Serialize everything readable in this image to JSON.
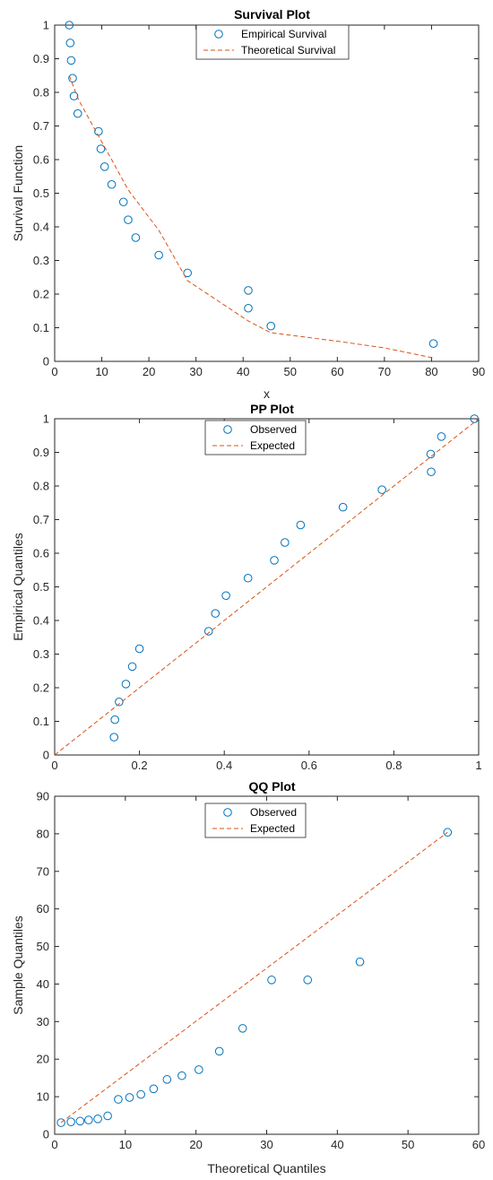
{
  "colors": {
    "marker": "#0072BD",
    "line": "#D95319",
    "axis": "#262626",
    "background": "#ffffff"
  },
  "chart_data": [
    {
      "type": "scatter",
      "title": "Survival Plot",
      "xlabel": "x",
      "ylabel": "Survival Function",
      "xlim": [
        0,
        90
      ],
      "ylim": [
        0,
        1
      ],
      "xticks": [
        0,
        10,
        20,
        30,
        40,
        50,
        60,
        70,
        80,
        90
      ],
      "yticks": [
        0,
        0.1,
        0.2,
        0.3,
        0.4,
        0.5,
        0.6,
        0.7,
        0.8,
        0.9,
        1
      ],
      "legend_position": "top-center",
      "grid": false,
      "series": [
        {
          "name": "Empirical Survival",
          "kind": "markers",
          "x": [
            3.1,
            3.3,
            3.5,
            3.8,
            4.1,
            4.9,
            9.3,
            9.8,
            10.6,
            12.1,
            14.6,
            15.6,
            17.2,
            22.1,
            28.2,
            41.1,
            41.1,
            45.9,
            80.4
          ],
          "y": [
            1.0,
            0.947,
            0.895,
            0.842,
            0.789,
            0.737,
            0.684,
            0.632,
            0.579,
            0.526,
            0.474,
            0.421,
            0.368,
            0.316,
            0.263,
            0.211,
            0.158,
            0.105,
            0.053
          ]
        },
        {
          "name": "Theoretical Survival",
          "kind": "dashed-line",
          "x": [
            3.1,
            5,
            9.3,
            12.1,
            15.6,
            22.1,
            28.2,
            41.1,
            45.9,
            60,
            70,
            80.4
          ],
          "y": [
            0.85,
            0.78,
            0.67,
            0.6,
            0.51,
            0.39,
            0.24,
            0.12,
            0.085,
            0.06,
            0.04,
            0.01
          ]
        }
      ]
    },
    {
      "type": "scatter",
      "title": "PP Plot",
      "xlabel": "",
      "ylabel": "Empirical Quantiles",
      "xlim": [
        0,
        1
      ],
      "ylim": [
        0,
        1
      ],
      "xticks": [
        0,
        0.2,
        0.4,
        0.6,
        0.8,
        1
      ],
      "yticks": [
        0,
        0.1,
        0.2,
        0.3,
        0.4,
        0.5,
        0.6,
        0.7,
        0.8,
        0.9,
        1
      ],
      "legend_position": "top-center",
      "grid": false,
      "series": [
        {
          "name": "Observed",
          "kind": "markers",
          "x": [
            0.14,
            0.142,
            0.152,
            0.168,
            0.183,
            0.2,
            0.363,
            0.379,
            0.404,
            0.456,
            0.518,
            0.543,
            0.58,
            0.68,
            0.772,
            0.888,
            0.887,
            0.912,
            0.99
          ],
          "y": [
            0.053,
            0.105,
            0.158,
            0.211,
            0.263,
            0.316,
            0.368,
            0.421,
            0.474,
            0.526,
            0.579,
            0.632,
            0.684,
            0.737,
            0.789,
            0.842,
            0.895,
            0.947,
            1.0
          ]
        },
        {
          "name": "Expected",
          "kind": "dashed-line",
          "x": [
            0,
            1
          ],
          "y": [
            0,
            1
          ]
        }
      ]
    },
    {
      "type": "scatter",
      "title": "QQ Plot",
      "xlabel": "Theoretical Quantiles",
      "ylabel": "Sample Quantiles",
      "xlim": [
        0,
        60
      ],
      "ylim": [
        0,
        90
      ],
      "xticks": [
        0,
        10,
        20,
        30,
        40,
        50,
        60
      ],
      "yticks": [
        0,
        10,
        20,
        30,
        40,
        50,
        60,
        70,
        80,
        90
      ],
      "legend_position": "top-center",
      "grid": false,
      "series": [
        {
          "name": "Observed",
          "kind": "markers",
          "x": [
            0.9,
            2.3,
            3.6,
            4.8,
            6.1,
            7.5,
            9.0,
            10.6,
            12.2,
            14.0,
            15.9,
            18.0,
            20.4,
            23.3,
            26.6,
            30.7,
            35.8,
            43.2,
            55.6
          ],
          "y": [
            3.1,
            3.3,
            3.5,
            3.8,
            4.1,
            4.9,
            9.3,
            9.8,
            10.6,
            12.1,
            14.6,
            15.6,
            17.2,
            22.1,
            28.2,
            41.1,
            41.1,
            45.9,
            80.4
          ]
        },
        {
          "name": "Expected",
          "kind": "dashed-line",
          "x": [
            0.9,
            55.6
          ],
          "y": [
            3.1,
            80.4
          ]
        }
      ]
    }
  ]
}
